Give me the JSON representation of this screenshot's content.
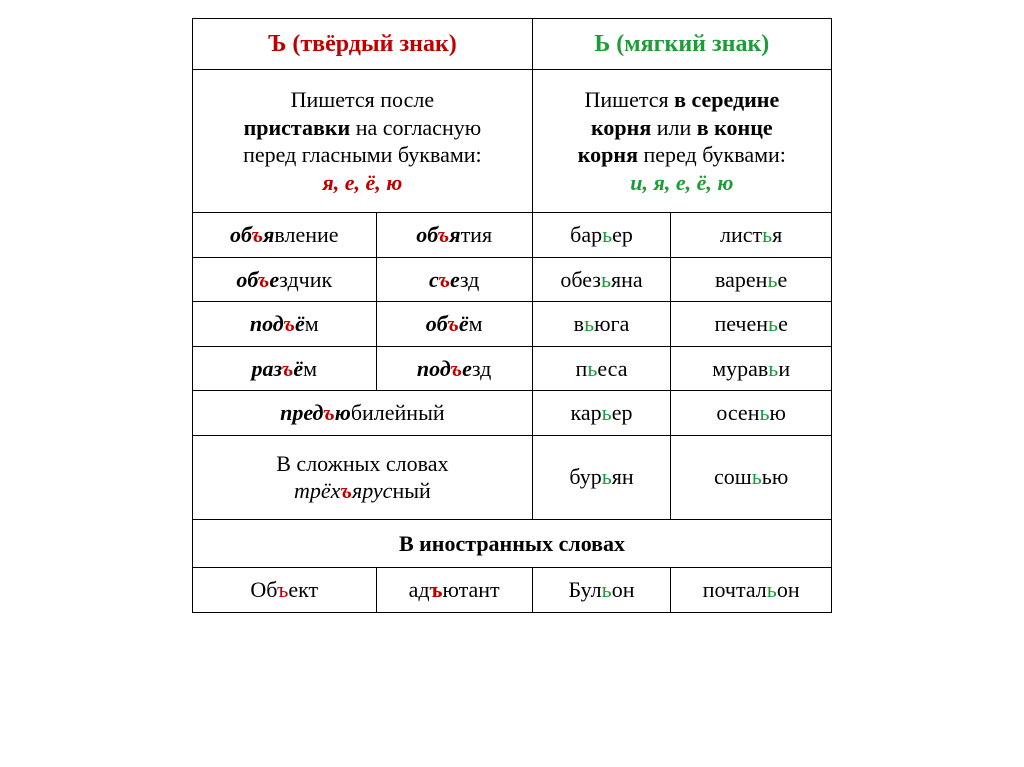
{
  "colors": {
    "hard": "#c00000",
    "soft": "#1f9c3a",
    "text": "#000000",
    "border": "#000000",
    "bg": "#ffffff"
  },
  "header": {
    "hard": "Ъ (твёрдый знак)",
    "soft": "Ь (мягкий знак)"
  },
  "rule": {
    "hard_l1": "Пишется после",
    "hard_l2a": "приставки",
    "hard_l2b": " на согласную",
    "hard_l3": "перед гласными буквами:",
    "hard_vowels": "я, е, ё, ю",
    "soft_l1a": "Пишется ",
    "soft_l1b": "в середине",
    "soft_l2a": "корня",
    "soft_l2b": " или ",
    "soft_l2c": "в конце",
    "soft_l3a": "корня",
    "soft_l3b": " перед буквами:",
    "soft_vowels": "и, я, е, ё, ю"
  },
  "rows": {
    "r1": {
      "h1_pre": "об",
      "h1_s": "ъ",
      "h1_sf1": "я",
      "h1_sf2": "вление",
      "h2_pre": "об",
      "h2_s": "ъ",
      "h2_sf1": "я",
      "h2_sf2": "тия",
      "s1_pre": "бар",
      "s1_s": "ь",
      "s1_suf": "ер",
      "s2_pre": "лист",
      "s2_s": "ь",
      "s2_suf": "я"
    },
    "r2": {
      "h1_pre": "об",
      "h1_s": "ъ",
      "h1_sf1": "е",
      "h1_sf2": "здчик",
      "h2_pre": "с",
      "h2_s": "ъ",
      "h2_sf1": "е",
      "h2_sf2": "зд",
      "s1_pre": "обез",
      "s1_s": "ь",
      "s1_suf": "яна",
      "s2_pre": "варен",
      "s2_s": "ь",
      "s2_suf": "е"
    },
    "r3": {
      "h1_pre": "под",
      "h1_s": "ъ",
      "h1_sf1": "ё",
      "h1_sf2": "м",
      "h2_pre": "об",
      "h2_s": "ъ",
      "h2_sf1": "ё",
      "h2_sf2": "м",
      "s1_pre": "в",
      "s1_s": "ь",
      "s1_suf": "юга",
      "s2_pre": "печен",
      "s2_s": "ь",
      "s2_suf": "е"
    },
    "r4": {
      "h1_pre": "раз",
      "h1_s": "ъ",
      "h1_sf1": "ё",
      "h1_sf2": "м",
      "h2_pre": "под",
      "h2_s": "ъ",
      "h2_sf1": "е",
      "h2_sf2": "зд",
      "s1_pre": "п",
      "s1_s": "ь",
      "s1_suf": "еса",
      "s2_pre": "мурав",
      "s2_s": "ь",
      "s2_suf": "и"
    },
    "r5": {
      "h_pre": "пред",
      "h_s": "ъ",
      "h_sf1": "ю",
      "h_sf2": "билейный",
      "s1_pre": "кар",
      "s1_s": "ь",
      "s1_suf": "ер",
      "s2_pre": "осен",
      "s2_s": "ь",
      "s2_suf": "ю"
    },
    "r6": {
      "comp_l1": "В сложных словах",
      "comp_pre": "трёх",
      "comp_s": "ъ",
      "comp_sf1": "ярус",
      "comp_sf2": "ный",
      "s1_pre": "бур",
      "s1_s": "ь",
      "s1_suf": "ян",
      "s2_pre": "сош",
      "s2_s": "ь",
      "s2_suf": "ью"
    }
  },
  "foreign": {
    "title": "В иностранных словах",
    "c1_pre": "Об",
    "c1_s": "ъ",
    "c1_suf": "ект",
    "c2_pre": "ад",
    "c2_s": "ъ",
    "c2_suf": "ютант",
    "c3_pre": "Бул",
    "c3_s": "ь",
    "c3_suf": "он",
    "c4_pre": "почтал",
    "c4_s": "ь",
    "c4_suf": "он"
  }
}
